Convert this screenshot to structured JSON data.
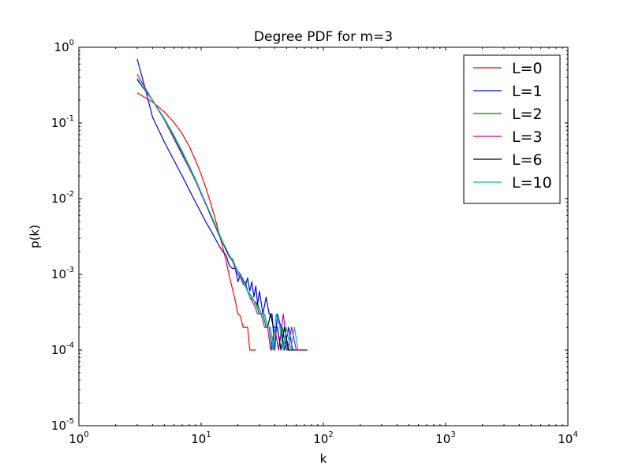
{
  "chart_data": {
    "type": "line",
    "title": "Degree PDF for m=3",
    "xlabel": "k",
    "ylabel": "p(k)",
    "xscale": "log",
    "yscale": "log",
    "xlim": [
      1,
      10000
    ],
    "ylim": [
      1e-05,
      1
    ],
    "x_ticks": [
      {
        "base": "10",
        "exp": "0",
        "value": 1
      },
      {
        "base": "10",
        "exp": "1",
        "value": 10
      },
      {
        "base": "10",
        "exp": "2",
        "value": 100
      },
      {
        "base": "10",
        "exp": "3",
        "value": 1000
      },
      {
        "base": "10",
        "exp": "4",
        "value": 10000
      }
    ],
    "y_ticks": [
      {
        "base": "10",
        "exp": "0",
        "value": 1
      },
      {
        "base": "10",
        "exp": "-1",
        "value": 0.1
      },
      {
        "base": "10",
        "exp": "-2",
        "value": 0.01
      },
      {
        "base": "10",
        "exp": "-3",
        "value": 0.001
      },
      {
        "base": "10",
        "exp": "-4",
        "value": 0.0001
      },
      {
        "base": "10",
        "exp": "-5",
        "value": 1e-05
      }
    ],
    "grid": false,
    "legend_position": "top-right",
    "series": [
      {
        "name": "L=0",
        "color": "#ff0000",
        "points": [
          [
            3,
            0.25
          ],
          [
            4,
            0.19
          ],
          [
            5,
            0.14
          ],
          [
            6,
            0.102
          ],
          [
            7,
            0.072
          ],
          [
            8,
            0.049
          ],
          [
            9,
            0.032
          ],
          [
            10,
            0.021
          ],
          [
            11,
            0.0135
          ],
          [
            12,
            0.0086
          ],
          [
            13,
            0.0055
          ],
          [
            14,
            0.0035
          ],
          [
            15,
            0.0023
          ],
          [
            16,
            0.0015
          ],
          [
            17,
            0.00095
          ],
          [
            18,
            0.00065
          ],
          [
            19,
            0.00045
          ],
          [
            20,
            0.0003
          ],
          [
            21,
            0.00028
          ],
          [
            22,
            0.0002
          ],
          [
            24,
            0.0002
          ],
          [
            25,
            0.0001
          ],
          [
            26,
            0.0001
          ],
          [
            28,
            0.0001
          ]
        ]
      },
      {
        "name": "L=1",
        "color": "#0000ff",
        "points": [
          [
            3,
            0.7
          ],
          [
            3.5,
            0.28
          ],
          [
            4,
            0.12
          ],
          [
            5,
            0.056
          ],
          [
            6,
            0.032
          ],
          [
            7,
            0.02
          ],
          [
            8,
            0.013
          ],
          [
            9,
            0.009
          ],
          [
            10,
            0.0065
          ],
          [
            11,
            0.0048
          ],
          [
            12,
            0.0038
          ],
          [
            13,
            0.003
          ],
          [
            14,
            0.0024
          ],
          [
            15,
            0.002
          ],
          [
            16,
            0.0018
          ],
          [
            17,
            0.0013
          ],
          [
            18,
            0.0012
          ],
          [
            19,
            0.0012
          ],
          [
            20,
            0.0008
          ],
          [
            21,
            0.001
          ],
          [
            22,
            0.00085
          ],
          [
            23,
            0.0007
          ],
          [
            24,
            0.0009
          ],
          [
            25,
            0.0006
          ],
          [
            26,
            0.0008
          ],
          [
            27,
            0.0005
          ],
          [
            28,
            0.0007
          ],
          [
            29,
            0.0004
          ],
          [
            30,
            0.0006
          ],
          [
            32,
            0.0003
          ],
          [
            34,
            0.0005
          ],
          [
            36,
            0.0003
          ],
          [
            38,
            0.0003
          ],
          [
            40,
            0.0001
          ],
          [
            42,
            0.0003
          ],
          [
            45,
            0.0002
          ],
          [
            48,
            0.0001
          ],
          [
            52,
            0.0002
          ],
          [
            56,
            0.0001
          ],
          [
            62,
            0.0001
          ],
          [
            68,
            0.0001
          ],
          [
            74,
            0.0001
          ]
        ]
      },
      {
        "name": "L=2",
        "color": "#008000",
        "points": [
          [
            3,
            0.37
          ],
          [
            4,
            0.2
          ],
          [
            5,
            0.115
          ],
          [
            6,
            0.068
          ],
          [
            7,
            0.042
          ],
          [
            8,
            0.027
          ],
          [
            9,
            0.018
          ],
          [
            10,
            0.012
          ],
          [
            11,
            0.0083
          ],
          [
            12,
            0.0059
          ],
          [
            13,
            0.0044
          ],
          [
            14,
            0.0033
          ],
          [
            15,
            0.0026
          ],
          [
            16,
            0.0021
          ],
          [
            17,
            0.0017
          ],
          [
            18,
            0.0016
          ],
          [
            19,
            0.0013
          ],
          [
            20,
            0.0011
          ],
          [
            21,
            0.001
          ],
          [
            22,
            0.0008
          ],
          [
            23,
            0.0008
          ],
          [
            24,
            0.0006
          ],
          [
            25,
            0.00055
          ],
          [
            26,
            0.0005
          ],
          [
            28,
            0.0004
          ],
          [
            30,
            0.0003
          ],
          [
            32,
            0.0003
          ],
          [
            34,
            0.0002
          ],
          [
            36,
            0.0002
          ],
          [
            38,
            0.0001
          ],
          [
            40,
            0.0002
          ],
          [
            43,
            0.0001
          ],
          [
            46,
            0.0002
          ],
          [
            50,
            0.0001
          ],
          [
            55,
            0.0001
          ]
        ]
      },
      {
        "name": "L=3",
        "color": "#bf00bf",
        "points": [
          [
            3,
            0.44
          ],
          [
            4,
            0.2
          ],
          [
            5,
            0.11
          ],
          [
            6,
            0.062
          ],
          [
            7,
            0.038
          ],
          [
            8,
            0.025
          ],
          [
            9,
            0.017
          ],
          [
            10,
            0.0115
          ],
          [
            11,
            0.0082
          ],
          [
            12,
            0.006
          ],
          [
            13,
            0.0045
          ],
          [
            14,
            0.0034
          ],
          [
            15,
            0.0027
          ],
          [
            16,
            0.0021
          ],
          [
            17,
            0.0017
          ],
          [
            18,
            0.0015
          ],
          [
            19,
            0.0012
          ],
          [
            20,
            0.001
          ],
          [
            21,
            0.0009
          ],
          [
            22,
            0.00075
          ],
          [
            23,
            0.0007
          ],
          [
            24,
            0.0006
          ],
          [
            25,
            0.0005
          ],
          [
            27,
            0.0004
          ],
          [
            29,
            0.0003
          ],
          [
            31,
            0.0003
          ],
          [
            33,
            0.0002
          ],
          [
            35,
            0.0002
          ],
          [
            37,
            0.0001
          ],
          [
            40,
            0.0002
          ],
          [
            43,
            0.0001
          ],
          [
            47,
            0.0003
          ],
          [
            51,
            0.0001
          ],
          [
            55,
            0.0002
          ],
          [
            60,
            0.0001
          ],
          [
            64,
            0.0001
          ]
        ]
      },
      {
        "name": "L=6",
        "color": "#000000",
        "points": [
          [
            3,
            0.38
          ],
          [
            4,
            0.2
          ],
          [
            5,
            0.112
          ],
          [
            6,
            0.065
          ],
          [
            7,
            0.04
          ],
          [
            8,
            0.026
          ],
          [
            9,
            0.0175
          ],
          [
            10,
            0.012
          ],
          [
            11,
            0.0084
          ],
          [
            12,
            0.006
          ],
          [
            13,
            0.0045
          ],
          [
            14,
            0.0034
          ],
          [
            15,
            0.0027
          ],
          [
            16,
            0.0021
          ],
          [
            17,
            0.0018
          ],
          [
            18,
            0.0015
          ],
          [
            19,
            0.0013
          ],
          [
            20,
            0.0011
          ],
          [
            21,
            0.00095
          ],
          [
            22,
            0.0008
          ],
          [
            23,
            0.0007
          ],
          [
            24,
            0.0006
          ],
          [
            25,
            0.0005
          ],
          [
            27,
            0.00045
          ],
          [
            29,
            0.0004
          ],
          [
            31,
            0.0003
          ],
          [
            33,
            0.0003
          ],
          [
            35,
            0.0002
          ],
          [
            37,
            0.0003
          ],
          [
            39,
            0.0002
          ],
          [
            42,
            0.0002
          ],
          [
            45,
            0.0001
          ],
          [
            48,
            0.0002
          ],
          [
            52,
            0.0001
          ],
          [
            57,
            0.0001
          ]
        ]
      },
      {
        "name": "L=10",
        "color": "#00bfbf",
        "points": [
          [
            3,
            0.39
          ],
          [
            4,
            0.2
          ],
          [
            5,
            0.113
          ],
          [
            6,
            0.066
          ],
          [
            7,
            0.041
          ],
          [
            8,
            0.026
          ],
          [
            9,
            0.0175
          ],
          [
            10,
            0.012
          ],
          [
            11,
            0.0085
          ],
          [
            12,
            0.0062
          ],
          [
            13,
            0.0046
          ],
          [
            14,
            0.0035
          ],
          [
            15,
            0.0027
          ],
          [
            16,
            0.0022
          ],
          [
            17,
            0.0018
          ],
          [
            18,
            0.0015
          ],
          [
            19,
            0.0013
          ],
          [
            20,
            0.0011
          ],
          [
            21,
            0.00095
          ],
          [
            22,
            0.0008
          ],
          [
            23,
            0.0007
          ],
          [
            24,
            0.0006
          ],
          [
            25,
            0.0005
          ],
          [
            27,
            0.00045
          ],
          [
            29,
            0.00038
          ],
          [
            31,
            0.0003
          ],
          [
            33,
            0.0003
          ],
          [
            35,
            0.0002
          ],
          [
            37,
            0.0002
          ],
          [
            39,
            0.0001
          ],
          [
            41,
            0.0003
          ],
          [
            44,
            0.0002
          ],
          [
            47,
            0.0001
          ],
          [
            50,
            0.0002
          ],
          [
            54,
            0.0001
          ],
          [
            58,
            0.0002
          ],
          [
            62,
            0.0001
          ]
        ]
      }
    ]
  }
}
